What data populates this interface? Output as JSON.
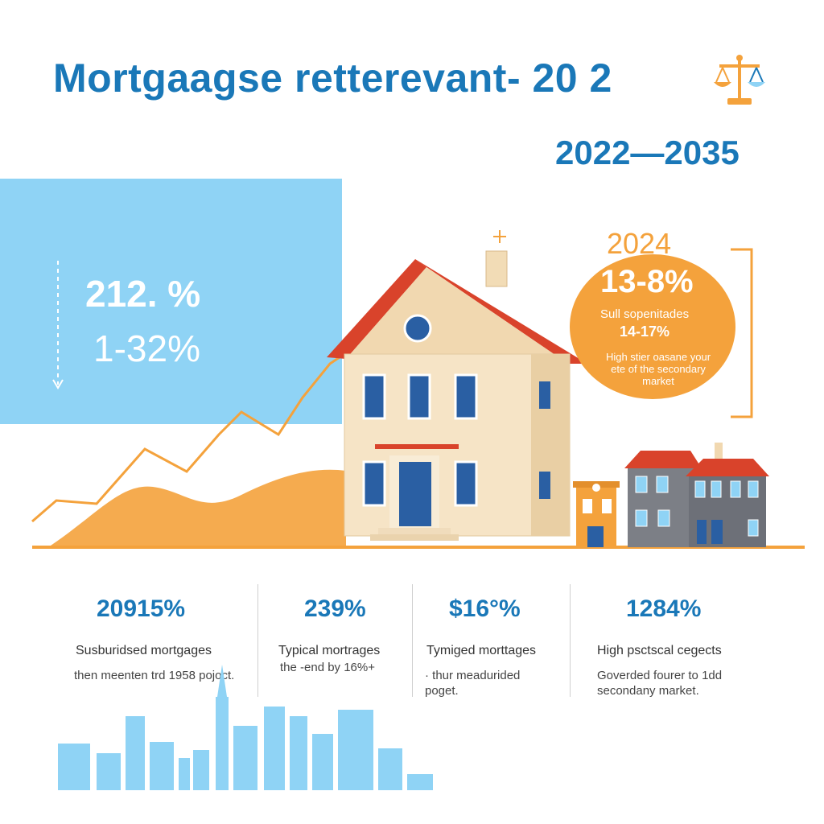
{
  "colors": {
    "primary_blue": "#1a78b8",
    "panel_blue": "#8fd3f5",
    "accent_orange": "#f4a23c",
    "roof_red": "#d9432b"
  },
  "header": {
    "title": "Mortgaagse retterevant- 20 2",
    "title_icon": "scales-icon",
    "range": "2022—2035"
  },
  "blue_panel": {
    "stat_1": "212. %",
    "stat_2": "1-32%"
  },
  "callout": {
    "year": "2024",
    "stat": "13-8%",
    "line_1": "Sull sopenitades",
    "line_2": "14-17%",
    "line_3": "High stier oasane your ete of the secondary market"
  },
  "stats": [
    {
      "value": "20915%",
      "label": "Susburidsed mortgages",
      "note": "then meenten trd 1958 pojoct."
    },
    {
      "value": "239%",
      "label": "Typical mortrages",
      "note": "the -end by 16%+"
    },
    {
      "value": "$16°%",
      "label": "Tymiged morttages",
      "note": "· thur meadurided poget."
    },
    {
      "value": "1284%",
      "label": "High psctscal cegects",
      "note": "Goverded fourer to 1dd secondany market."
    }
  ]
}
